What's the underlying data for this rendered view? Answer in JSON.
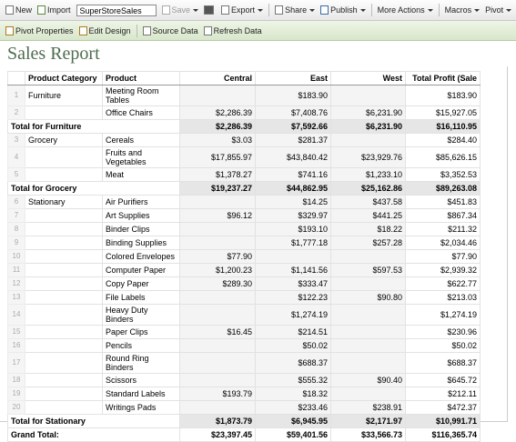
{
  "toolbar": {
    "new": "New",
    "import": "Import",
    "file_name": "SuperStoreSales",
    "save": "Save",
    "export": "Export",
    "share": "Share",
    "publish": "Publish",
    "more_actions": "More Actions",
    "macros": "Macros",
    "pivot": "Pivot"
  },
  "subtoolbar": {
    "pivot_properties": "Pivot Properties",
    "edit_design": "Edit Design",
    "source_data": "Source Data",
    "refresh_data": "Refresh Data"
  },
  "report": {
    "title": "Sales Report",
    "columns": [
      "Product Category",
      "Product",
      "Central",
      "East",
      "West",
      "Total Profit (Sale"
    ],
    "rows": [
      {
        "num": "1",
        "category": "Furniture",
        "product": "Meeting Room Tables",
        "values": [
          null,
          "$183.90",
          null,
          "$183.90"
        ]
      },
      {
        "num": "2",
        "product": "Office Chairs",
        "values": [
          "$2,286.39",
          "$7,408.76",
          "$6,231.90",
          "$15,927.05"
        ]
      },
      {
        "label": "Total for Furniture",
        "values": [
          "$2,286.39",
          "$7,592.66",
          "$6,231.90",
          "$16,110.95"
        ]
      },
      {
        "num": "3",
        "category": "Grocery",
        "product": "Cereals",
        "values": [
          "$3.03",
          "$281.37",
          null,
          "$284.40"
        ]
      },
      {
        "num": "4",
        "product": "Fruits and Vegetables",
        "values": [
          "$17,855.97",
          "$43,840.42",
          "$23,929.76",
          "$85,626.15"
        ]
      },
      {
        "num": "5",
        "product": "Meat",
        "values": [
          "$1,378.27",
          "$741.16",
          "$1,233.10",
          "$3,352.53"
        ]
      },
      {
        "label": "Total for Grocery",
        "values": [
          "$19,237.27",
          "$44,862.95",
          "$25,162.86",
          "$89,263.08"
        ]
      },
      {
        "num": "6",
        "category": "Stationary",
        "product": "Air Purifiers",
        "values": [
          null,
          "$14.25",
          "$437.58",
          "$451.83"
        ]
      },
      {
        "num": "7",
        "product": "Art Supplies",
        "values": [
          "$96.12",
          "$329.97",
          "$441.25",
          "$867.34"
        ]
      },
      {
        "num": "8",
        "product": "Binder Clips",
        "values": [
          null,
          "$193.10",
          "$18.22",
          "$211.32"
        ]
      },
      {
        "num": "9",
        "product": "Binding Supplies",
        "values": [
          null,
          "$1,777.18",
          "$257.28",
          "$2,034.46"
        ]
      },
      {
        "num": "10",
        "product": "Colored Envelopes",
        "values": [
          "$77.90",
          null,
          null,
          "$77.90"
        ]
      },
      {
        "num": "11",
        "product": "Computer Paper",
        "values": [
          "$1,200.23",
          "$1,141.56",
          "$597.53",
          "$2,939.32"
        ]
      },
      {
        "num": "12",
        "product": "Copy Paper",
        "values": [
          "$289.30",
          "$333.47",
          null,
          "$622.77"
        ]
      },
      {
        "num": "13",
        "product": "File Labels",
        "values": [
          null,
          "$122.23",
          "$90.80",
          "$213.03"
        ]
      },
      {
        "num": "14",
        "product": "Heavy Duty Binders",
        "values": [
          null,
          "$1,274.19",
          null,
          "$1,274.19"
        ]
      },
      {
        "num": "15",
        "product": "Paper Clips",
        "values": [
          "$16.45",
          "$214.51",
          null,
          "$230.96"
        ]
      },
      {
        "num": "16",
        "product": "Pencils",
        "values": [
          null,
          "$50.02",
          null,
          "$50.02"
        ]
      },
      {
        "num": "17",
        "product": "Round Ring Binders",
        "values": [
          null,
          "$688.37",
          null,
          "$688.37"
        ]
      },
      {
        "num": "18",
        "product": "Scissors",
        "values": [
          null,
          "$555.32",
          "$90.40",
          "$645.72"
        ]
      },
      {
        "num": "19",
        "product": "Standard Labels",
        "values": [
          "$193.79",
          "$18.32",
          null,
          "$212.11"
        ]
      },
      {
        "num": "20",
        "product": "Writings Pads",
        "values": [
          null,
          "$233.46",
          "$238.91",
          "$472.37"
        ]
      },
      {
        "label": "Total for Stationary",
        "values": [
          "$1,873.79",
          "$6,945.95",
          "$2,171.97",
          "$10,991.71"
        ]
      },
      {
        "label": "Grand Total:",
        "values": [
          "$23,397.45",
          "$59,401.56",
          "$33,566.73",
          "$116,365.74"
        ]
      }
    ]
  }
}
